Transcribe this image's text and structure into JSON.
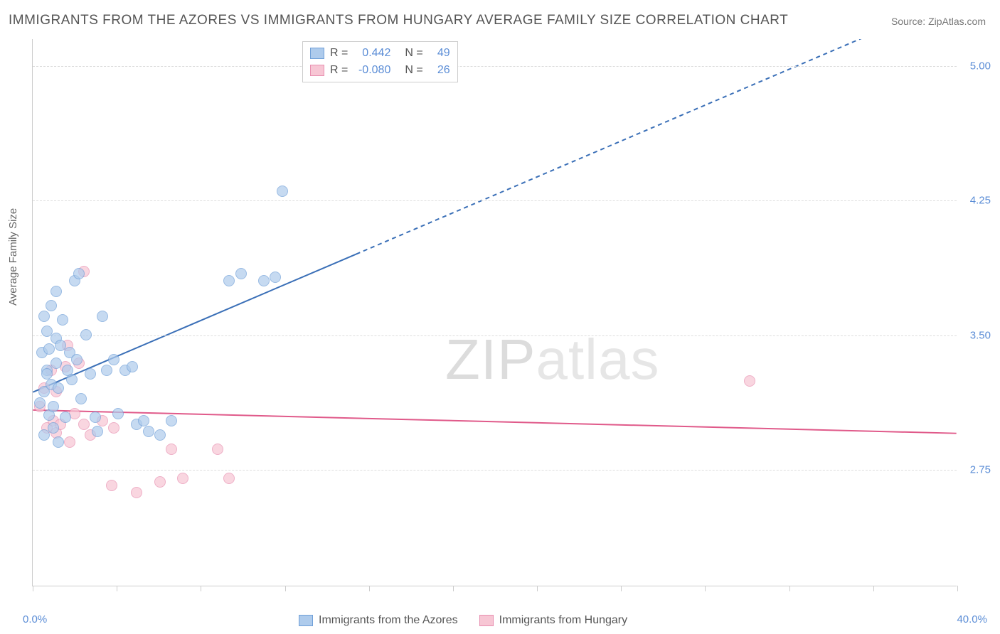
{
  "title": "IMMIGRANTS FROM THE AZORES VS IMMIGRANTS FROM HUNGARY AVERAGE FAMILY SIZE CORRELATION CHART",
  "source": "Source: ZipAtlas.com",
  "ylabel": "Average Family Size",
  "watermark_zip": "ZIP",
  "watermark_atlas": "atlas",
  "chart": {
    "type": "scatter",
    "xlim": [
      0,
      40
    ],
    "ylim": [
      2.1,
      5.15
    ],
    "yticks": [
      2.75,
      3.5,
      4.25,
      5.0
    ],
    "ytick_labels": [
      "2.75",
      "3.50",
      "4.25",
      "5.00"
    ],
    "xtick_positions": [
      0,
      3.64,
      7.27,
      10.91,
      14.55,
      18.18,
      21.82,
      25.45,
      29.09,
      32.73,
      36.36,
      40
    ],
    "xlim_start_label": "0.0%",
    "xlim_end_label": "40.0%",
    "background_color": "#ffffff",
    "grid_color": "#dddddd",
    "axis_color": "#cccccc",
    "tick_label_color": "#5b8dd6",
    "marker_radius": 8,
    "marker_opacity": 0.7
  },
  "series": {
    "azores": {
      "label": "Immigrants from the Azores",
      "fill_color": "#aecbec",
      "border_color": "#6f9fd8",
      "line_color": "#3a6fb7",
      "R": "0.442",
      "N": "49",
      "regression": {
        "x1": 0,
        "y1": 3.18,
        "x2": 14,
        "y2": 3.95,
        "x3": 40,
        "y3": 5.38
      },
      "points": [
        [
          0.3,
          3.12
        ],
        [
          0.4,
          3.4
        ],
        [
          0.5,
          3.18
        ],
        [
          0.5,
          2.94
        ],
        [
          0.6,
          3.52
        ],
        [
          0.6,
          3.3
        ],
        [
          0.7,
          3.05
        ],
        [
          0.7,
          3.42
        ],
        [
          0.8,
          3.66
        ],
        [
          0.8,
          3.22
        ],
        [
          0.9,
          3.1
        ],
        [
          0.9,
          2.98
        ],
        [
          1.0,
          3.48
        ],
        [
          1.0,
          3.34
        ],
        [
          1.1,
          3.2
        ],
        [
          1.1,
          2.9
        ],
        [
          1.2,
          3.44
        ],
        [
          1.3,
          3.58
        ],
        [
          1.4,
          3.04
        ],
        [
          1.5,
          3.3
        ],
        [
          1.6,
          3.4
        ],
        [
          1.7,
          3.25
        ],
        [
          1.8,
          3.8
        ],
        [
          1.9,
          3.36
        ],
        [
          2.0,
          3.84
        ],
        [
          2.1,
          3.14
        ],
        [
          2.3,
          3.5
        ],
        [
          2.5,
          3.28
        ],
        [
          2.7,
          3.04
        ],
        [
          2.8,
          2.96
        ],
        [
          3.0,
          3.6
        ],
        [
          3.2,
          3.3
        ],
        [
          3.5,
          3.36
        ],
        [
          3.7,
          3.06
        ],
        [
          4.0,
          3.3
        ],
        [
          4.3,
          3.32
        ],
        [
          4.5,
          3.0
        ],
        [
          4.8,
          3.02
        ],
        [
          5.0,
          2.96
        ],
        [
          5.5,
          2.94
        ],
        [
          6.0,
          3.02
        ],
        [
          8.5,
          3.8
        ],
        [
          9.0,
          3.84
        ],
        [
          10.0,
          3.8
        ],
        [
          10.5,
          3.82
        ],
        [
          10.8,
          4.3
        ],
        [
          1.0,
          3.74
        ],
        [
          0.5,
          3.6
        ],
        [
          0.6,
          3.28
        ]
      ]
    },
    "hungary": {
      "label": "Immigrants from Hungary",
      "fill_color": "#f7c6d4",
      "border_color": "#e88fb0",
      "line_color": "#e05a8a",
      "R": "-0.080",
      "N": "26",
      "regression": {
        "x1": 0,
        "y1": 3.08,
        "x2": 40,
        "y2": 2.95
      },
      "points": [
        [
          0.3,
          3.1
        ],
        [
          0.5,
          3.2
        ],
        [
          0.6,
          2.98
        ],
        [
          0.8,
          3.3
        ],
        [
          0.9,
          3.02
        ],
        [
          1.0,
          3.18
        ],
        [
          1.0,
          2.95
        ],
        [
          1.2,
          3.0
        ],
        [
          1.4,
          3.32
        ],
        [
          1.5,
          3.44
        ],
        [
          1.6,
          2.9
        ],
        [
          1.8,
          3.06
        ],
        [
          2.0,
          3.34
        ],
        [
          2.2,
          3.0
        ],
        [
          2.2,
          3.85
        ],
        [
          2.5,
          2.94
        ],
        [
          3.0,
          3.02
        ],
        [
          3.4,
          2.66
        ],
        [
          3.5,
          2.98
        ],
        [
          4.5,
          2.62
        ],
        [
          5.5,
          2.68
        ],
        [
          6.0,
          2.86
        ],
        [
          6.5,
          2.7
        ],
        [
          8.0,
          2.86
        ],
        [
          8.5,
          2.7
        ],
        [
          31.0,
          3.24
        ]
      ]
    }
  },
  "legend_labels": {
    "R_label": "R =",
    "N_label": "N ="
  }
}
